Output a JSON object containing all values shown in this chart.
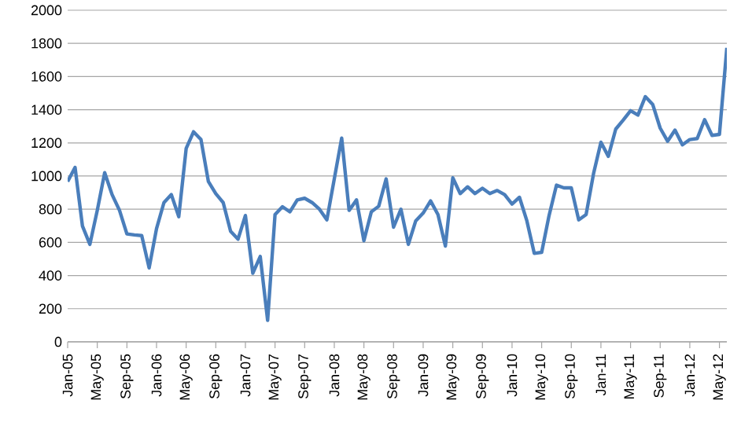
{
  "chart_data": {
    "type": "line",
    "categories": [
      "Jan-05",
      null,
      null,
      null,
      "May-05",
      null,
      null,
      null,
      "Sep-05",
      null,
      null,
      null,
      "Jan-06",
      null,
      null,
      null,
      "May-06",
      null,
      null,
      null,
      "Sep-06",
      null,
      null,
      null,
      "Jan-07",
      null,
      null,
      null,
      "May-07",
      null,
      null,
      null,
      "Sep-07",
      null,
      null,
      null,
      "Jan-08",
      null,
      null,
      null,
      "May-08",
      null,
      null,
      null,
      "Sep-08",
      null,
      null,
      null,
      "Jan-09",
      null,
      null,
      null,
      "May-09",
      null,
      null,
      null,
      "Sep-09",
      null,
      null,
      null,
      "Jan-10",
      null,
      null,
      null,
      "May-10",
      null,
      null,
      null,
      "Sep-10",
      null,
      null,
      null,
      "Jan-11",
      null,
      null,
      null,
      "May-11",
      null,
      null,
      null,
      "Sep-11",
      null,
      null,
      null,
      "Jan-12",
      null,
      null,
      null,
      "May-12",
      null
    ],
    "series": [
      {
        "color": "#4a7ebb",
        "values": [
          967,
          1052,
          698,
          588,
          793,
          1020,
          888,
          793,
          651,
          645,
          641,
          446,
          683,
          840,
          888,
          755,
          1166,
          1267,
          1220,
          967,
          894,
          840,
          667,
          619,
          762,
          414,
          515,
          130,
          768,
          815,
          784,
          856,
          866,
          840,
          800,
          736,
          983,
          1229,
          793,
          856,
          610,
          784,
          818,
          983,
          692,
          800,
          588,
          730,
          777,
          850,
          768,
          578,
          989,
          894,
          935,
          894,
          926,
          894,
          913,
          888,
          831,
          872,
          730,
          534,
          540,
          762,
          945,
          929,
          929,
          736,
          768,
          1014,
          1204,
          1119,
          1283,
          1337,
          1394,
          1368,
          1479,
          1431,
          1289,
          1210,
          1277,
          1188,
          1220,
          1226,
          1340,
          1245,
          1251,
          1773
        ]
      }
    ],
    "ylim": [
      0,
      2000
    ],
    "yticks": [
      0,
      200,
      400,
      600,
      800,
      1000,
      1200,
      1400,
      1600,
      1800,
      2000
    ],
    "grid": "y",
    "marker": "none",
    "line_style": "solid"
  }
}
